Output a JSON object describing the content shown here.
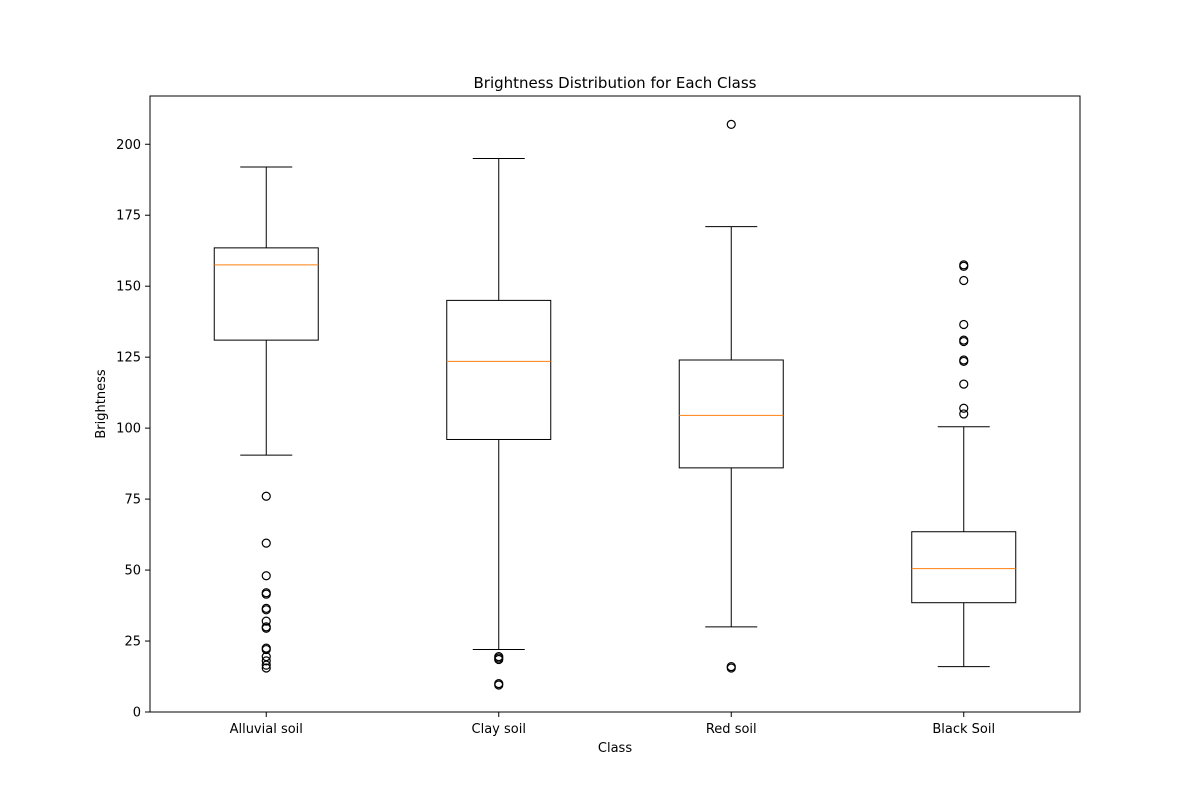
{
  "chart_data": {
    "type": "box",
    "title": "Brightness Distribution for Each Class",
    "xlabel": "Class",
    "ylabel": "Brightness",
    "ylim": [
      0,
      217
    ],
    "yticks": [
      0,
      25,
      50,
      75,
      100,
      125,
      150,
      175,
      200
    ],
    "grid": false,
    "colors": {
      "box": "#000000",
      "median": "#ff7f0e",
      "background": "#ffffff"
    },
    "categories": [
      "Alluvial soil",
      "Clay soil",
      "Red soil",
      "Black Soil"
    ],
    "boxes": [
      {
        "category": "Alluvial soil",
        "whisker_low": 90.5,
        "q1": 131.0,
        "median": 157.5,
        "q3": 163.5,
        "whisker_high": 192.0,
        "outliers": [
          76,
          59.5,
          48,
          42,
          41.5,
          36,
          36.5,
          32,
          30,
          29.5,
          22.5,
          22,
          19.5,
          18,
          16.5,
          15.5
        ]
      },
      {
        "category": "Clay soil",
        "whisker_low": 22.0,
        "q1": 96.0,
        "median": 123.5,
        "q3": 145.0,
        "whisker_high": 195.0,
        "outliers": [
          19.5,
          19,
          18.5,
          10,
          9.5
        ]
      },
      {
        "category": "Red soil",
        "whisker_low": 30.0,
        "q1": 86.0,
        "median": 104.5,
        "q3": 124.0,
        "whisker_high": 171.0,
        "outliers": [
          207,
          16,
          15.5
        ]
      },
      {
        "category": "Black Soil",
        "whisker_low": 16.0,
        "q1": 38.5,
        "median": 50.5,
        "q3": 63.5,
        "whisker_high": 100.5,
        "outliers": [
          157.5,
          157,
          152,
          136.5,
          131,
          130.5,
          124,
          123.5,
          115.5,
          107,
          105
        ]
      }
    ]
  }
}
